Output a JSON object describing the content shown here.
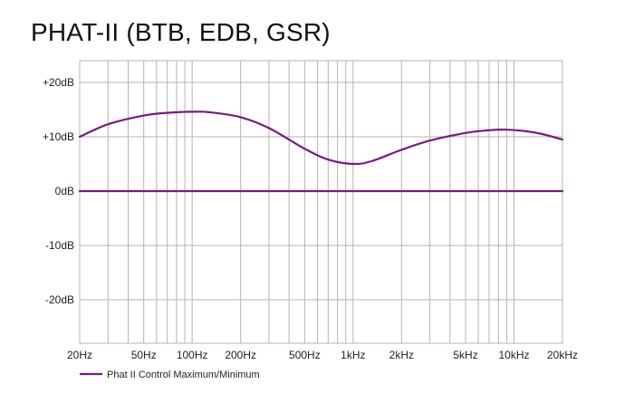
{
  "chart_data": {
    "type": "line",
    "title": "PHAT-II (BTB, EDB, GSR)",
    "xlabel": "",
    "ylabel": "",
    "x_scale": "log",
    "xlim": [
      20,
      20000
    ],
    "ylim": [
      -28,
      24
    ],
    "x_tick_values": [
      20,
      50,
      100,
      200,
      500,
      1000,
      2000,
      5000,
      10000,
      20000
    ],
    "x_tick_labels": [
      "20Hz",
      "50Hz",
      "100Hz",
      "200Hz",
      "500Hz",
      "1kHz",
      "2kHz",
      "5kHz",
      "10kHz",
      "20kHz"
    ],
    "y_tick_values": [
      20,
      10,
      0,
      -10,
      -20
    ],
    "y_tick_labels": [
      "+20dB",
      "+10dB",
      "0dB",
      "-10dB",
      "-20dB"
    ],
    "grid": true,
    "legend_position": "bottom-left",
    "colors": {
      "series": "#7a1a82",
      "grid": "#b4b4b4"
    },
    "series": [
      {
        "name": "Phat II Control Maximum/Minimum",
        "x": [
          20,
          30,
          50,
          70,
          100,
          130,
          200,
          300,
          500,
          700,
          1000,
          1300,
          2000,
          3000,
          5000,
          7000,
          9000,
          12000,
          15000,
          20000
        ],
        "y": [
          10,
          12.3,
          13.9,
          14.4,
          14.6,
          14.5,
          13.6,
          11.6,
          7.8,
          5.8,
          5.0,
          5.5,
          7.6,
          9.3,
          10.7,
          11.2,
          11.3,
          11.0,
          10.5,
          9.5
        ]
      },
      {
        "name": "",
        "x": [
          20,
          20000
        ],
        "y": [
          0,
          0
        ]
      }
    ]
  }
}
